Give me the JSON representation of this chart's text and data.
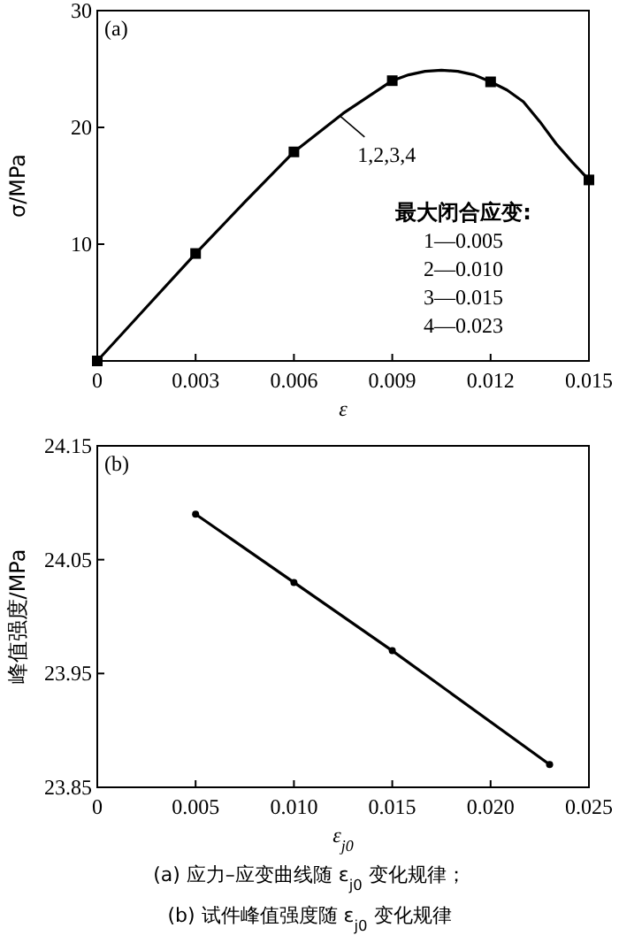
{
  "chart_data": [
    {
      "type": "line",
      "xlabel": "ε",
      "ylabel": "σ/MPa",
      "xlim": [
        0,
        0.015
      ],
      "ylim": [
        0,
        30
      ],
      "xticks": [
        0,
        0.003,
        0.006,
        0.009,
        0.012,
        0.015
      ],
      "yticks": [
        10,
        20,
        30
      ],
      "series": [
        {
          "color": "#000000",
          "marker": "none",
          "x": [
            0,
            0.0015,
            0.003,
            0.0045,
            0.006,
            0.0075,
            0.009,
            0.0095,
            0.01,
            0.0105,
            0.011,
            0.0115,
            0.012,
            0.0125,
            0.013,
            0.0135,
            0.014,
            0.0145,
            0.015
          ],
          "values": [
            0,
            4.6,
            9.2,
            13.6,
            17.9,
            21.2,
            24.0,
            24.5,
            24.8,
            24.9,
            24.8,
            24.5,
            23.9,
            23.2,
            22.2,
            20.5,
            18.6,
            17.0,
            15.5
          ]
        },
        {
          "type": "scatter",
          "color": "#000000",
          "marker": "square",
          "x": [
            0,
            0.003,
            0.006,
            0.009,
            0.012,
            0.015
          ],
          "values": [
            0,
            9.2,
            17.9,
            24.0,
            23.9,
            15.5
          ]
        }
      ],
      "annotations": [
        "(a)",
        {
          "text": "1,2,3,4",
          "x": 0.0074,
          "y": 21.0
        },
        "最大闭合应变:",
        "1—0.005",
        "2—0.010",
        "3—0.015",
        "4—0.023"
      ]
    },
    {
      "type": "line",
      "xlabel": "ε$_{j0}$",
      "ylabel": "峰值强度/MPa",
      "xlim": [
        0,
        0.025
      ],
      "ylim": [
        23.85,
        24.15
      ],
      "xticks": [
        0,
        0.005,
        {
          "value": 0.01,
          "label": "0.010"
        },
        0.015,
        {
          "value": 0.02,
          "label": "0.020"
        },
        0.025
      ],
      "yticks": [
        23.85,
        23.95,
        24.05,
        24.15
      ],
      "series": [
        {
          "color": "#000000",
          "marker": "circle",
          "x": [
            0.005,
            0.01,
            0.015,
            0.023
          ],
          "values": [
            24.09,
            24.03,
            23.97,
            23.87
          ]
        }
      ],
      "annotations": [
        "(b)",
        "(a) 应力–应变曲线随 ε$_{j0}$ 变化规律；",
        "(b) 试件峰值强度随 ε$_{j0}$ 变化规律"
      ]
    }
  ]
}
